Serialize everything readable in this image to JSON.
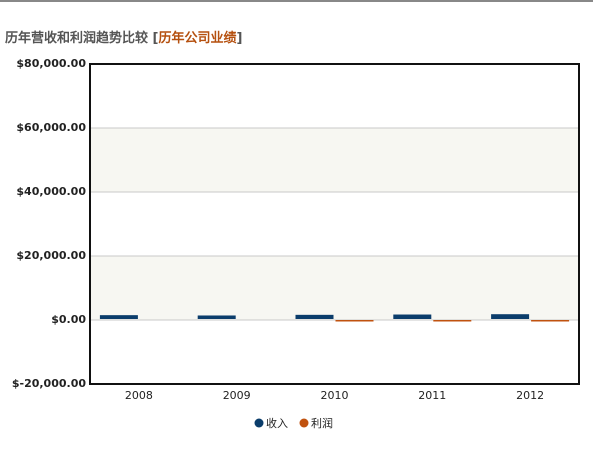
{
  "chart_data": {
    "type": "bar",
    "title": "历年营收和利润趋势比较",
    "subtitle": "[历年公司业绩]",
    "categories": [
      "2008",
      "2009",
      "2010",
      "2011",
      "2012"
    ],
    "series": [
      {
        "name": "收入",
        "color": "#0b3d6b",
        "values": [
          1200,
          1100,
          1300,
          1400,
          1500
        ]
      },
      {
        "name": "利润",
        "color": "#c0520f",
        "values": [
          null,
          null,
          -300,
          -200,
          -200
        ]
      }
    ],
    "ylim": [
      -20000,
      80000
    ],
    "yticks": [
      {
        "value": -20000,
        "label": "$-20,000.00"
      },
      {
        "value": 0,
        "label": "$0.00"
      },
      {
        "value": 20000,
        "label": "$20,000.00"
      },
      {
        "value": 40000,
        "label": "$40,000.00"
      },
      {
        "value": 60000,
        "label": "$60,000.00"
      },
      {
        "value": 80000,
        "label": "$80,000.00"
      }
    ],
    "grid": true
  }
}
